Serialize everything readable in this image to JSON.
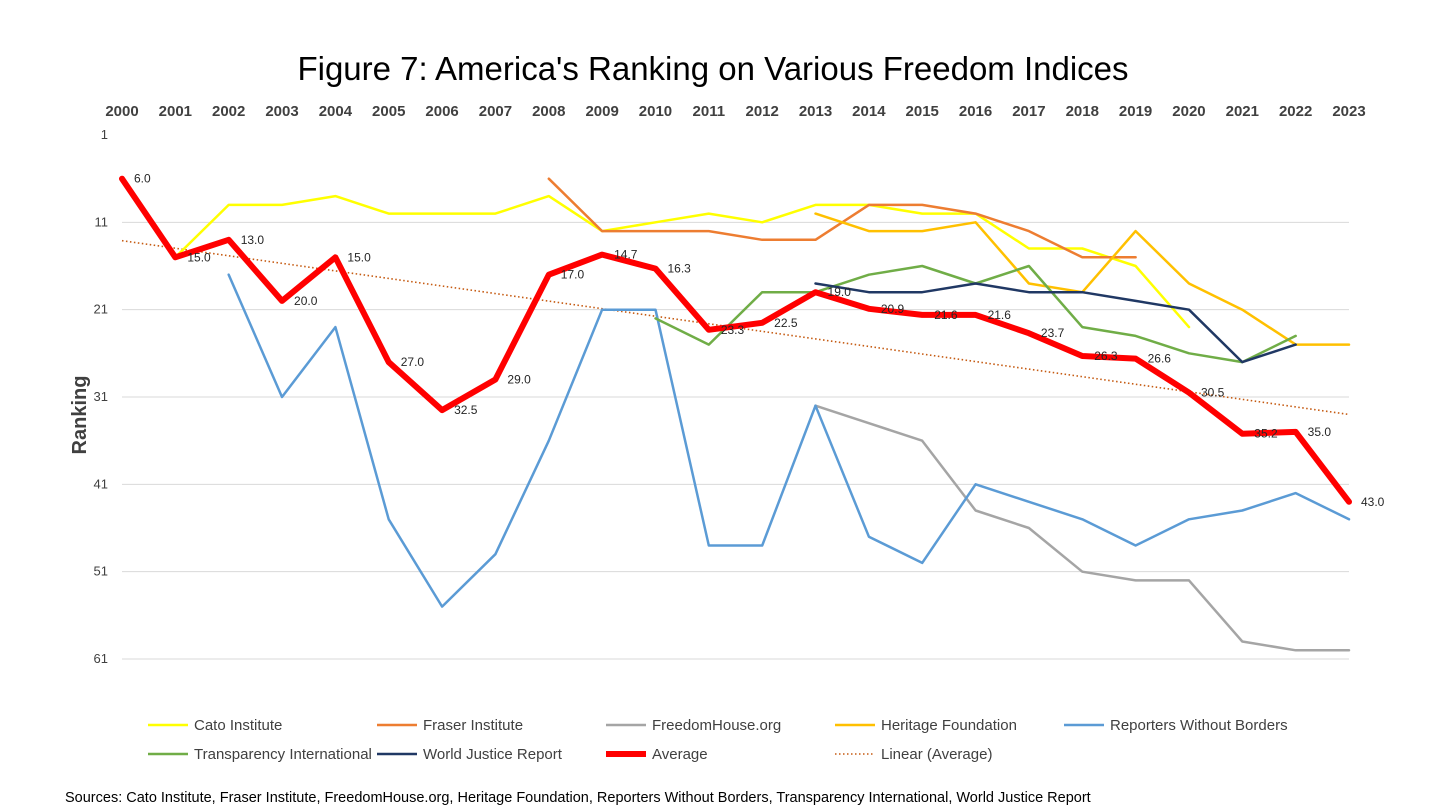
{
  "chart_data": {
    "type": "line",
    "title": "Figure 7: America's Ranking on Various Freedom Indices",
    "ylabel": "Ranking",
    "xlabel": "",
    "y_inverted": true,
    "ylim": [
      1,
      61
    ],
    "yticks": [
      "1",
      "11",
      "21",
      "31",
      "41",
      "51",
      "61"
    ],
    "x": [
      "2000",
      "2001",
      "2002",
      "2003",
      "2004",
      "2005",
      "2006",
      "2007",
      "2008",
      "2009",
      "2010",
      "2011",
      "2012",
      "2013",
      "2014",
      "2015",
      "2016",
      "2017",
      "2018",
      "2019",
      "2020",
      "2021",
      "2022",
      "2023"
    ],
    "legend_position": "bottom",
    "series": [
      {
        "name": "Cato Institute",
        "color": "#FFFF00",
        "values": [
          null,
          15,
          9,
          9,
          8,
          10,
          10,
          10,
          8,
          12,
          11,
          10,
          11,
          9,
          9,
          10,
          10,
          14,
          14,
          16,
          23,
          null,
          null,
          null
        ]
      },
      {
        "name": "Fraser Institute",
        "color": "#ED7D31",
        "values": [
          null,
          null,
          null,
          null,
          null,
          null,
          null,
          null,
          6,
          12,
          12,
          12,
          13,
          13,
          9,
          9,
          10,
          12,
          15,
          15,
          null,
          null,
          null,
          null
        ]
      },
      {
        "name": "FreedomHouse.org",
        "color": "#A5A5A5",
        "values": [
          null,
          null,
          null,
          null,
          null,
          null,
          null,
          null,
          null,
          null,
          null,
          null,
          null,
          32,
          34,
          36,
          44,
          46,
          51,
          52,
          52,
          59,
          60,
          60
        ]
      },
      {
        "name": "Heritage Foundation",
        "color": "#FFC000",
        "values": [
          null,
          null,
          null,
          null,
          null,
          null,
          null,
          null,
          null,
          null,
          null,
          null,
          null,
          10,
          12,
          12,
          11,
          18,
          19,
          12,
          18,
          21,
          25,
          25
        ]
      },
      {
        "name": "Reporters Without Borders",
        "color": "#5B9BD5",
        "values": [
          null,
          null,
          17,
          31,
          23,
          45,
          55,
          49,
          36,
          21,
          21,
          48,
          48,
          32,
          47,
          50,
          41,
          43,
          45,
          48,
          45,
          44,
          42,
          45
        ]
      },
      {
        "name": "Transparency International",
        "color": "#70AD47",
        "values": [
          null,
          null,
          null,
          null,
          null,
          null,
          null,
          null,
          null,
          null,
          22,
          25,
          19,
          19,
          17,
          16,
          18,
          16,
          23,
          24,
          26,
          27,
          24,
          null
        ]
      },
      {
        "name": "World Justice Report",
        "color": "#203864",
        "values": [
          null,
          null,
          null,
          null,
          null,
          null,
          null,
          null,
          null,
          null,
          null,
          null,
          null,
          18,
          19,
          19,
          18,
          19,
          19,
          20,
          21,
          27,
          25,
          null
        ]
      },
      {
        "name": "Average",
        "color": "#FF0000",
        "values": [
          6.0,
          15.0,
          13.0,
          20.0,
          15.0,
          27.0,
          32.5,
          29.0,
          17.0,
          14.7,
          16.3,
          23.3,
          22.5,
          19.0,
          20.9,
          21.6,
          21.6,
          23.7,
          26.3,
          26.6,
          30.5,
          35.2,
          35.0,
          43.0
        ]
      }
    ],
    "average_labels": [
      "6.0",
      "15.0",
      "13.0",
      "20.0",
      "15.0",
      "27.0",
      "32.5",
      "29.0",
      "17.0",
      "14.7",
      "16.3",
      "23.3",
      "22.5",
      "19.0",
      "20.9",
      "21.6",
      "21.6",
      "23.7",
      "26.3",
      "26.6",
      "30.5",
      "35.2",
      "35.0",
      "43.0"
    ],
    "trendline": {
      "name": "Linear (Average)",
      "color": "#C55A11",
      "start": 13.1,
      "end": 33.0
    },
    "sources": "Sources: Cato Institute, Fraser Institute, FreedomHouse.org, Heritage Foundation, Reporters Without Borders, Transparency International, World Justice Report"
  }
}
